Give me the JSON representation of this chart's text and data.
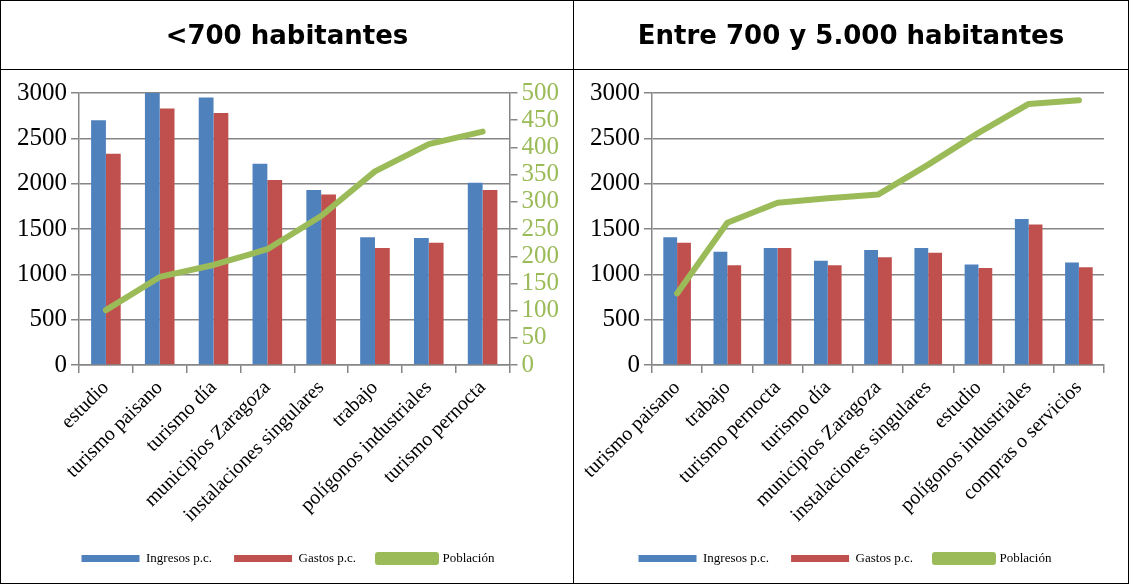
{
  "chart_data": [
    {
      "type": "bar",
      "title": "<700 habitantes",
      "categories": [
        "estudio",
        "turismo paisano",
        "turismo día",
        "municipios Zaragoza",
        "instalaciones singulares",
        "trabajo",
        "polígonos industriales",
        "turismo pernocta"
      ],
      "series": [
        {
          "name": "Ingresos p.c.",
          "color": "#4f81bd",
          "values": [
            2700,
            3000,
            2950,
            2220,
            1930,
            1410,
            1400,
            2010
          ]
        },
        {
          "name": "Gastos p.c.",
          "color": "#c0504d",
          "values": [
            2330,
            2830,
            2780,
            2040,
            1880,
            1290,
            1350,
            1930
          ]
        },
        {
          "name": "Población",
          "color": "#9bbb59",
          "type": "line",
          "axis": "y2",
          "values": [
            101,
            162,
            184,
            213,
            274,
            356,
            406,
            429
          ]
        }
      ],
      "ylim": [
        0,
        3000
      ],
      "yticks": [
        0,
        500,
        1000,
        1500,
        2000,
        2500,
        3000
      ],
      "y2lim": [
        0,
        500
      ],
      "y2ticks": [
        0,
        50,
        100,
        150,
        200,
        250,
        300,
        350,
        400,
        450,
        500
      ],
      "grid": "y",
      "legend": "bottom",
      "marker": "none"
    },
    {
      "type": "bar",
      "title": "Entre 700 y 5.000 habitantes",
      "categories": [
        "turismo paisano",
        "trabajo",
        "turismo pernocta",
        "turismo día",
        "municipios Zaragoza",
        "instalaciones singulares",
        "estudio",
        "polígonos industriales",
        "compras o servicios"
      ],
      "series": [
        {
          "name": "Ingresos p.c.",
          "color": "#4f81bd",
          "values": [
            1410,
            1250,
            1290,
            1150,
            1270,
            1290,
            1110,
            1610,
            1130
          ]
        },
        {
          "name": "Gastos p.c.",
          "color": "#c0504d",
          "values": [
            1350,
            1100,
            1290,
            1100,
            1190,
            1240,
            1070,
            1550,
            1080
          ]
        },
        {
          "name": "Población",
          "color": "#9bbb59",
          "type": "line",
          "values": [
            790,
            1570,
            1790,
            1840,
            1880,
            2210,
            2560,
            2880,
            2920
          ]
        }
      ],
      "ylim": [
        0,
        3000
      ],
      "yticks": [
        0,
        500,
        1000,
        1500,
        2000,
        2500,
        3000
      ],
      "grid": "y",
      "legend": "bottom",
      "marker": "none"
    }
  ]
}
